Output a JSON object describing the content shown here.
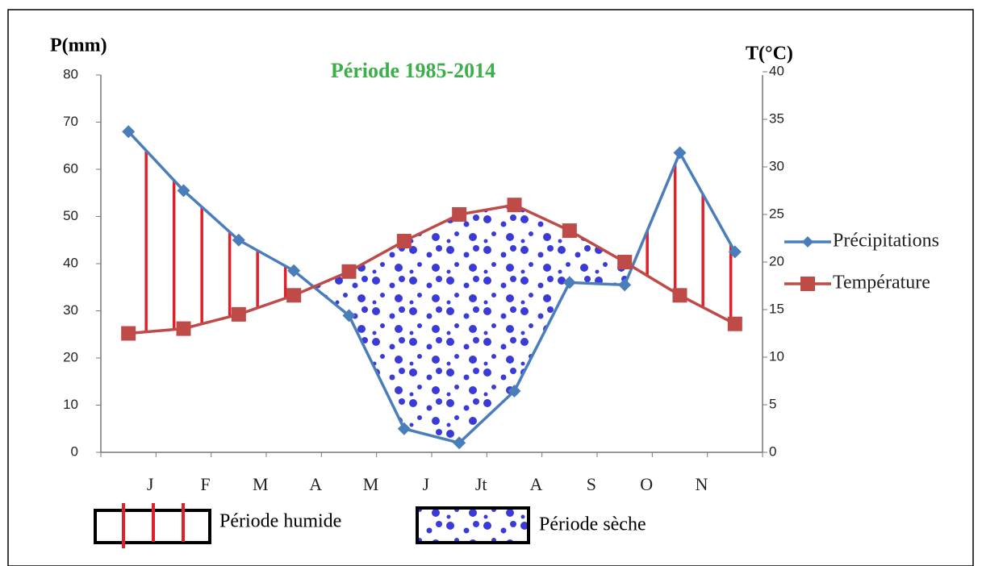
{
  "chart_data": {
    "type": "line",
    "title": "Période 1985-2014",
    "y_label": "P(mm)",
    "y2_label": "T(°C)",
    "categories": [
      "J",
      "F",
      "M",
      "A",
      "M",
      "J",
      "Jt",
      "A",
      "S",
      "O",
      "N",
      null
    ],
    "series": [
      {
        "name": "Précipitations",
        "color": "#4a7ebb",
        "values": [
          68,
          55.5,
          45,
          38.5,
          29,
          5,
          2,
          13,
          36,
          35.5,
          63.5,
          42.5
        ]
      },
      {
        "name": "Température",
        "color": "#be4b48",
        "axis": "y2",
        "values": [
          12.5,
          13,
          14.5,
          16.5,
          19,
          22.2,
          25,
          26,
          23.3,
          20,
          16.5,
          13.5
        ]
      }
    ],
    "ylim": [
      0,
      80
    ],
    "yticks": [
      0,
      10,
      20,
      30,
      40,
      50,
      60,
      70,
      80
    ],
    "y2lim": [
      0,
      40
    ],
    "y2ticks": [
      0,
      5,
      10,
      15,
      20,
      25,
      30,
      35,
      40
    ],
    "legend_items": [
      "Période humide",
      "Période sèche"
    ]
  }
}
